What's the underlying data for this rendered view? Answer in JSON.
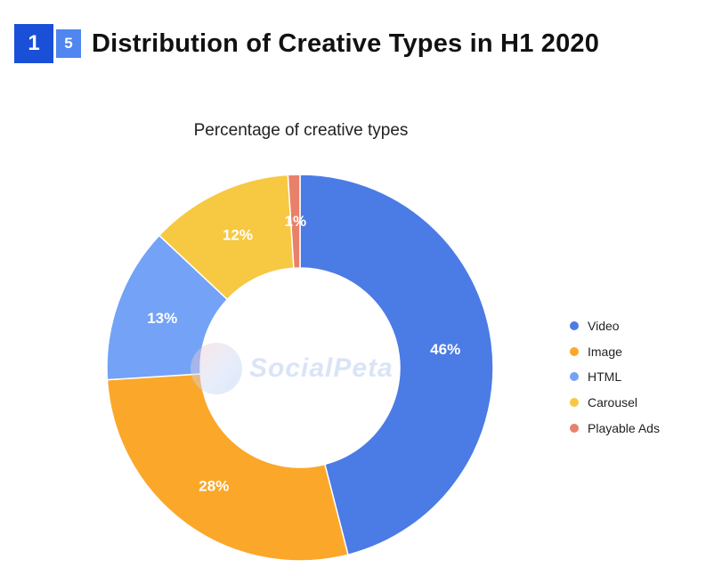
{
  "header": {
    "badge_primary": "1",
    "badge_secondary": "5",
    "title": "Distribution of Creative Types in H1 2020"
  },
  "watermark": {
    "text": "SocialPeta"
  },
  "chart_data": {
    "type": "pie",
    "variant": "donut",
    "title": "Percentage of creative types",
    "categories": [
      "Video",
      "Image",
      "HTML",
      "Carousel",
      "Playable Ads"
    ],
    "values": [
      46,
      28,
      13,
      12,
      1
    ],
    "labels": [
      "46%",
      "28%",
      "13%",
      "12%",
      "1%"
    ],
    "colors": [
      "#4b7be5",
      "#fba72a",
      "#73a2f7",
      "#f7c842",
      "#e9806a"
    ],
    "start_angle_deg": 0,
    "direction": "clockwise",
    "legend_position": "right"
  }
}
